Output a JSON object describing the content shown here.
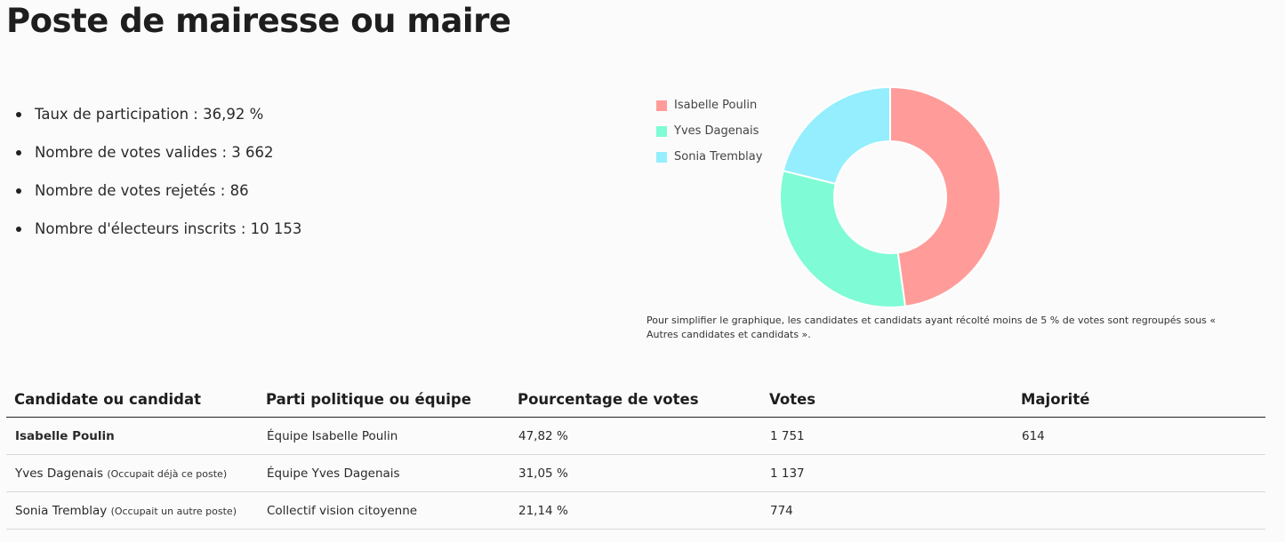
{
  "page_title": "Poste de mairesse ou maire",
  "stats": [
    "Taux de participation : 36,92 %",
    "Nombre de votes valides : 3 662",
    "Nombre de votes rejetés : 86",
    "Nombre d'électeurs inscrits : 10 153"
  ],
  "chart_data": {
    "type": "pie",
    "labels": [
      "Isabelle Poulin",
      "Yves Dagenais",
      "Sonia Tremblay"
    ],
    "values": [
      47.82,
      31.05,
      21.14
    ],
    "colors": [
      "#ff9c99",
      "#7ffbd5",
      "#94eefd"
    ],
    "legend_position": "top-left",
    "note": "Pour simplifier le graphique, les candidates et candidats ayant récolté moins de 5 % de votes sont regroupés sous « Autres candidates et candidats »."
  },
  "table": {
    "headers": [
      "Candidate ou candidat",
      "Parti politique ou équipe",
      "Pourcentage de votes",
      "Votes",
      "Majorité"
    ],
    "rows": [
      {
        "name": "Isabelle Poulin",
        "note": "",
        "party": "Équipe Isabelle Poulin",
        "percent": "47,82 %",
        "votes": "1 751",
        "majority": "614",
        "winner": true
      },
      {
        "name": "Yves Dagenais",
        "note": "(Occupait déjà ce poste)",
        "party": "Équipe Yves Dagenais",
        "percent": "31,05 %",
        "votes": "1 137",
        "majority": "",
        "winner": false
      },
      {
        "name": "Sonia Tremblay",
        "note": "(Occupait un autre poste)",
        "party": "Collectif vision citoyenne",
        "percent": "21,14 %",
        "votes": "774",
        "majority": "",
        "winner": false
      }
    ]
  }
}
